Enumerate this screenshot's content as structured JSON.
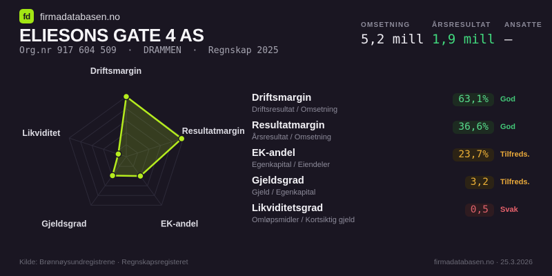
{
  "brand": {
    "logo_text": "fd",
    "site": "firmadatabasen.no",
    "accent": "#a3e614"
  },
  "header": {
    "title": "ELIESONS GATE 4 AS",
    "subtitle": "Org.nr 917 604 509  ·  DRAMMEN  ·  Regnskap 2025"
  },
  "stats": [
    {
      "label": "OMSETNING",
      "value": "5,2 mill",
      "tone": "light"
    },
    {
      "label": "ÅRSRESULTAT",
      "value": "1,9 mill",
      "tone": "green"
    },
    {
      "label": "ANSATTE",
      "value": "–",
      "tone": "light"
    }
  ],
  "metrics": [
    {
      "name": "Driftsmargin",
      "formula": "Driftsresultat / Omsetning",
      "value": "63,1%",
      "status": "God",
      "tone": "good"
    },
    {
      "name": "Resultatmargin",
      "formula": "Årsresultat / Omsetning",
      "value": "36,6%",
      "status": "God",
      "tone": "good"
    },
    {
      "name": "EK-andel",
      "formula": "Egenkapital / Eiendeler",
      "value": "23,7%",
      "status": "Tilfreds.",
      "tone": "ok"
    },
    {
      "name": "Gjeldsgrad",
      "formula": "Gjeld / Egenkapital",
      "value": "3,2",
      "status": "Tilfreds.",
      "tone": "ok"
    },
    {
      "name": "Likviditetsgrad",
      "formula": "Omløpsmidler / Kortsiktig gjeld",
      "value": "0,5",
      "status": "Svak",
      "tone": "bad"
    }
  ],
  "chart_data": {
    "type": "radar",
    "axes": [
      "Driftsmargin",
      "Resultatmargin",
      "EK-andel",
      "Gjeldsgrad",
      "Likviditet"
    ],
    "values_normalized": [
      1.0,
      0.97,
      0.4,
      0.39,
      0.14
    ],
    "rings": 5,
    "legend": "none",
    "colors": {
      "stroke": "#b5ec1e",
      "fill": "rgba(181,236,30,0.18)",
      "grid": "#2d2a39",
      "dot_outline": "#1a1622",
      "label": "#dcdbe3"
    }
  },
  "status_colors": {
    "good": "#43c878",
    "ok": "#e9a93a",
    "bad": "#e6616b",
    "value_green": "#41d97d"
  },
  "footer": {
    "left": "Kilde: Brønnøysundregistrene · Regnskapsregisteret",
    "right": "firmadatabasen.no · 25.3.2026"
  }
}
